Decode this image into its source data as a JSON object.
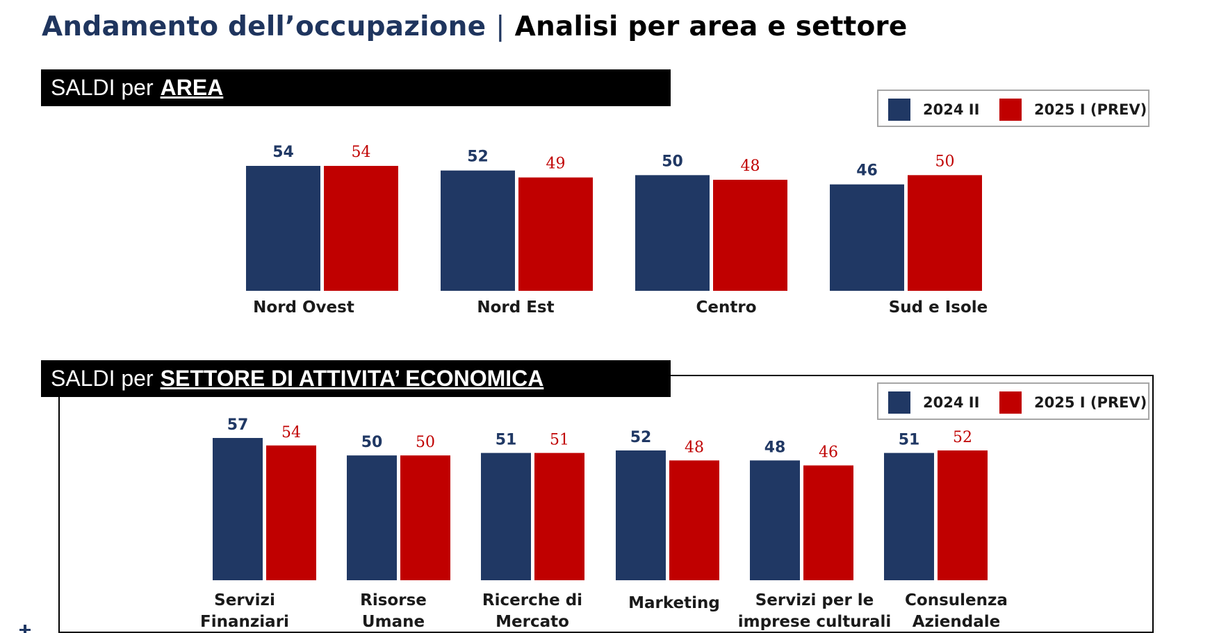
{
  "page": {
    "title_main": "Andamento dell’occupazione",
    "title_separator": "|",
    "title_sub": "Analisi per area e settore"
  },
  "colors": {
    "series_2024": "#203864",
    "series_2025": "#c00000",
    "header_bar": "#000000"
  },
  "sections": [
    {
      "prefix": "SALDI per",
      "highlight": "AREA"
    },
    {
      "prefix": "SALDI per",
      "highlight": "SETTORE DI ATTIVITA’ ECONOMICA"
    }
  ],
  "legend": [
    "2024 II",
    "2025  I (PREV)"
  ],
  "chart_data": [
    {
      "type": "bar",
      "title": "SALDI per AREA",
      "categories": [
        "Nord Ovest",
        "Nord Est",
        "Centro",
        "Sud e Isole"
      ],
      "series": [
        {
          "name": "2024 II",
          "values": [
            54,
            52,
            50,
            46
          ],
          "color": "#203864"
        },
        {
          "name": "2025  I (PREV)",
          "values": [
            54,
            49,
            48,
            50
          ],
          "color": "#c00000"
        }
      ],
      "legend_position": "top-right",
      "grid": false
    },
    {
      "type": "bar",
      "title": "SALDI per SETTORE DI ATTIVITA’ ECONOMICA",
      "categories": [
        "Servizi Finanziari",
        "Risorse Umane",
        "Ricerche di Mercato",
        "Marketing",
        "Servizi per le imprese culturali",
        "Consulenza Aziendale"
      ],
      "category_lines": [
        [
          "Servizi",
          "Finanziari"
        ],
        [
          "Risorse",
          "Umane"
        ],
        [
          "Ricerche di",
          "Mercato"
        ],
        [
          "Marketing"
        ],
        [
          "Servizi per le",
          "imprese culturali"
        ],
        [
          "Consulenza",
          "Aziendale"
        ]
      ],
      "series": [
        {
          "name": "2024 II",
          "values": [
            57,
            50,
            51,
            52,
            48,
            51
          ],
          "color": "#203864"
        },
        {
          "name": "2025  I (PREV)",
          "values": [
            54,
            50,
            51,
            48,
            46,
            52
          ],
          "color": "#c00000"
        }
      ],
      "legend_position": "top-right",
      "grid": false
    }
  ]
}
